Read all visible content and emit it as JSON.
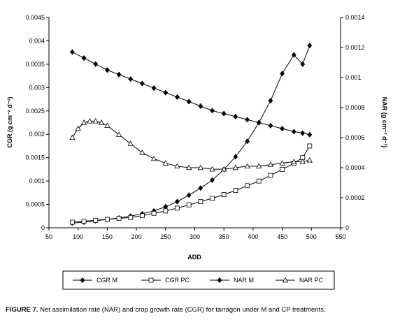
{
  "caption": {
    "label": "FIGURE 7.",
    "text": "Net assimilation rate (NAR) and crop growth rate (CGR) for tarragon under M and CP treatments."
  },
  "chart_data": {
    "type": "line",
    "title": "",
    "xlabel": "ADD",
    "ylabel_left": "CGR (g cm⁻² d⁻¹)",
    "ylabel_right": "NAR (g cm⁻² d⁻¹)",
    "xlim": [
      50,
      550
    ],
    "ylim_left": [
      0,
      0.0045
    ],
    "ylim_right": [
      0,
      0.0014
    ],
    "x_ticks": [
      "50",
      "100",
      "150",
      "200",
      "250",
      "300",
      "350",
      "400",
      "450",
      "500",
      "550"
    ],
    "y_left_ticks": [
      "0",
      "0.0005",
      "0.001",
      "0.0015",
      "0.002",
      "0.0025",
      "0.003",
      "0.0035",
      "0.004",
      "0.0045"
    ],
    "y_right_ticks": [
      "0",
      "0.0002",
      "0.0004",
      "0.0006",
      "0.0008",
      "0.001",
      "0.0012",
      "0.0014"
    ],
    "grid": false,
    "legend_position": "bottom",
    "series": [
      {
        "name": "CGR M",
        "axis": "left",
        "marker": "filled-diamond",
        "x": [
          90,
          110,
          130,
          150,
          170,
          190,
          210,
          230,
          250,
          270,
          290,
          310,
          330,
          350,
          370,
          390,
          410,
          430,
          450,
          470,
          485,
          497
        ],
        "values": [
          0.0001,
          0.00012,
          0.00015,
          0.00018,
          0.00021,
          0.00025,
          0.0003,
          0.00036,
          0.00045,
          0.00056,
          0.0007,
          0.00085,
          0.00102,
          0.00125,
          0.00152,
          0.00185,
          0.00225,
          0.00272,
          0.0033,
          0.0037,
          0.0035,
          0.0039
        ]
      },
      {
        "name": "CGR PC",
        "axis": "left",
        "marker": "open-square",
        "x": [
          90,
          110,
          130,
          150,
          170,
          190,
          210,
          230,
          250,
          270,
          290,
          310,
          330,
          350,
          370,
          390,
          410,
          430,
          450,
          470,
          485,
          497
        ],
        "values": [
          0.00012,
          0.00014,
          0.00016,
          0.00018,
          0.0002,
          0.00022,
          0.00026,
          0.00031,
          0.00036,
          0.00042,
          0.00049,
          0.00056,
          0.00063,
          0.00071,
          0.0008,
          0.0009,
          0.001,
          0.00112,
          0.00125,
          0.00138,
          0.0015,
          0.00175
        ]
      },
      {
        "name": "NAR M",
        "axis": "right",
        "marker": "filled-diamond",
        "x": [
          90,
          110,
          130,
          150,
          170,
          190,
          210,
          230,
          250,
          270,
          290,
          310,
          330,
          350,
          370,
          390,
          410,
          430,
          450,
          470,
          485,
          497
        ],
        "values": [
          0.00117,
          0.00113,
          0.00109,
          0.00105,
          0.00102,
          0.00099,
          0.00096,
          0.00093,
          0.0009,
          0.00087,
          0.00084,
          0.00081,
          0.00078,
          0.00076,
          0.00074,
          0.00072,
          0.0007,
          0.00068,
          0.00066,
          0.00064,
          0.00063,
          0.00062
        ]
      },
      {
        "name": "NAR PC",
        "axis": "right",
        "marker": "open-triangle",
        "x": [
          90,
          100,
          110,
          120,
          130,
          140,
          150,
          170,
          190,
          210,
          230,
          250,
          270,
          290,
          310,
          330,
          350,
          370,
          390,
          410,
          430,
          450,
          470,
          485,
          497
        ],
        "values": [
          0.0006,
          0.00066,
          0.0007,
          0.00071,
          0.00071,
          0.0007,
          0.00068,
          0.00062,
          0.00056,
          0.0005,
          0.00046,
          0.00043,
          0.00041,
          0.0004,
          0.0004,
          0.00039,
          0.00039,
          0.0004,
          0.00041,
          0.00041,
          0.00042,
          0.00043,
          0.00044,
          0.00044,
          0.00045
        ]
      }
    ]
  }
}
